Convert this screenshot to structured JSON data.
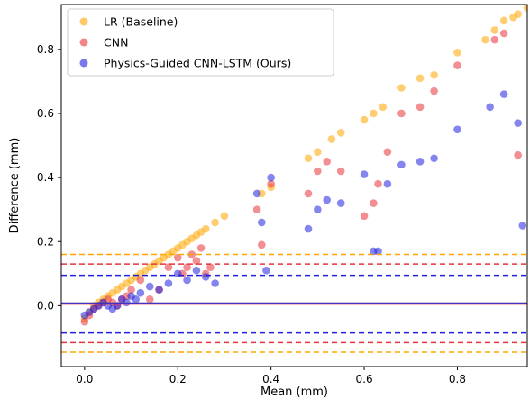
{
  "chart_data": {
    "type": "scatter",
    "title": "",
    "xlabel": "Mean (mm)",
    "ylabel": "Difference (mm)",
    "xlim": [
      -0.05,
      0.95
    ],
    "ylim": [
      -0.19,
      0.94
    ],
    "x_ticks": [
      0.0,
      0.2,
      0.4,
      0.6,
      0.8
    ],
    "x_tick_labels": [
      "0.0",
      "0.2",
      "0.4",
      "0.6",
      "0.8"
    ],
    "y_ticks": [
      0.0,
      0.2,
      0.4,
      0.6,
      0.8
    ],
    "y_tick_labels": [
      "0.0",
      "0.2",
      "0.4",
      "0.6",
      "0.8"
    ],
    "grid": false,
    "legend_position": "top-left",
    "series": [
      {
        "name": "LR (Baseline)",
        "color": "#FFA500",
        "bias": 0.008,
        "loa_upper": 0.16,
        "loa_lower": -0.145,
        "points": [
          [
            0.0,
            -0.04
          ],
          [
            0.01,
            -0.02
          ],
          [
            0.02,
            0.0
          ],
          [
            0.03,
            0.01
          ],
          [
            0.04,
            0.02
          ],
          [
            0.05,
            0.03
          ],
          [
            0.06,
            0.04
          ],
          [
            0.07,
            0.05
          ],
          [
            0.08,
            0.06
          ],
          [
            0.09,
            0.07
          ],
          [
            0.1,
            0.08
          ],
          [
            0.11,
            0.09
          ],
          [
            0.12,
            0.1
          ],
          [
            0.13,
            0.11
          ],
          [
            0.14,
            0.12
          ],
          [
            0.15,
            0.13
          ],
          [
            0.16,
            0.14
          ],
          [
            0.17,
            0.15
          ],
          [
            0.18,
            0.16
          ],
          [
            0.19,
            0.17
          ],
          [
            0.2,
            0.18
          ],
          [
            0.21,
            0.19
          ],
          [
            0.22,
            0.2
          ],
          [
            0.23,
            0.21
          ],
          [
            0.24,
            0.22
          ],
          [
            0.25,
            0.23
          ],
          [
            0.26,
            0.24
          ],
          [
            0.28,
            0.26
          ],
          [
            0.3,
            0.28
          ],
          [
            0.38,
            0.35
          ],
          [
            0.4,
            0.37
          ],
          [
            0.48,
            0.46
          ],
          [
            0.5,
            0.48
          ],
          [
            0.53,
            0.52
          ],
          [
            0.55,
            0.54
          ],
          [
            0.6,
            0.58
          ],
          [
            0.62,
            0.6
          ],
          [
            0.64,
            0.62
          ],
          [
            0.68,
            0.68
          ],
          [
            0.72,
            0.71
          ],
          [
            0.75,
            0.72
          ],
          [
            0.8,
            0.79
          ],
          [
            0.86,
            0.83
          ],
          [
            0.88,
            0.86
          ],
          [
            0.9,
            0.89
          ],
          [
            0.92,
            0.9
          ],
          [
            0.93,
            0.91
          ],
          [
            0.95,
            0.93
          ]
        ]
      },
      {
        "name": "CNN",
        "color": "#E8333A",
        "bias": 0.005,
        "loa_upper": 0.13,
        "loa_lower": -0.115,
        "points": [
          [
            0.0,
            -0.05
          ],
          [
            0.01,
            -0.03
          ],
          [
            0.02,
            -0.01
          ],
          [
            0.03,
            0.0
          ],
          [
            0.04,
            0.01
          ],
          [
            0.05,
            0.02
          ],
          [
            0.06,
            0.01
          ],
          [
            0.07,
            0.0
          ],
          [
            0.08,
            0.02
          ],
          [
            0.09,
            0.03
          ],
          [
            0.1,
            0.05
          ],
          [
            0.12,
            0.08
          ],
          [
            0.14,
            0.02
          ],
          [
            0.16,
            0.05
          ],
          [
            0.18,
            0.12
          ],
          [
            0.2,
            0.15
          ],
          [
            0.21,
            0.1
          ],
          [
            0.22,
            0.12
          ],
          [
            0.23,
            0.16
          ],
          [
            0.24,
            0.14
          ],
          [
            0.25,
            0.18
          ],
          [
            0.26,
            0.1
          ],
          [
            0.27,
            0.12
          ],
          [
            0.37,
            0.3
          ],
          [
            0.38,
            0.19
          ],
          [
            0.4,
            0.38
          ],
          [
            0.48,
            0.35
          ],
          [
            0.5,
            0.42
          ],
          [
            0.52,
            0.45
          ],
          [
            0.55,
            0.42
          ],
          [
            0.6,
            0.28
          ],
          [
            0.62,
            0.32
          ],
          [
            0.63,
            0.38
          ],
          [
            0.65,
            0.48
          ],
          [
            0.68,
            0.6
          ],
          [
            0.72,
            0.62
          ],
          [
            0.75,
            0.67
          ],
          [
            0.8,
            0.75
          ],
          [
            0.88,
            0.83
          ],
          [
            0.9,
            0.85
          ],
          [
            0.93,
            0.47
          ]
        ]
      },
      {
        "name": "Physics-Guided CNN-LSTM (Ours)",
        "color": "#2020E0",
        "bias": 0.008,
        "loa_upper": 0.095,
        "loa_lower": -0.085,
        "points": [
          [
            0.0,
            -0.03
          ],
          [
            0.01,
            -0.02
          ],
          [
            0.02,
            -0.01
          ],
          [
            0.03,
            0.0
          ],
          [
            0.04,
            0.01
          ],
          [
            0.05,
            0.0
          ],
          [
            0.06,
            -0.01
          ],
          [
            0.07,
            0.0
          ],
          [
            0.08,
            0.02
          ],
          [
            0.09,
            0.01
          ],
          [
            0.1,
            0.03
          ],
          [
            0.11,
            0.02
          ],
          [
            0.12,
            0.04
          ],
          [
            0.14,
            0.06
          ],
          [
            0.16,
            0.05
          ],
          [
            0.18,
            0.07
          ],
          [
            0.2,
            0.1
          ],
          [
            0.22,
            0.08
          ],
          [
            0.24,
            0.11
          ],
          [
            0.26,
            0.09
          ],
          [
            0.28,
            0.07
          ],
          [
            0.37,
            0.35
          ],
          [
            0.38,
            0.26
          ],
          [
            0.39,
            0.11
          ],
          [
            0.4,
            0.4
          ],
          [
            0.48,
            0.24
          ],
          [
            0.5,
            0.3
          ],
          [
            0.52,
            0.33
          ],
          [
            0.55,
            0.32
          ],
          [
            0.6,
            0.41
          ],
          [
            0.62,
            0.17
          ],
          [
            0.63,
            0.17
          ],
          [
            0.65,
            0.38
          ],
          [
            0.68,
            0.44
          ],
          [
            0.72,
            0.45
          ],
          [
            0.75,
            0.46
          ],
          [
            0.8,
            0.55
          ],
          [
            0.87,
            0.62
          ],
          [
            0.9,
            0.66
          ],
          [
            0.93,
            0.57
          ],
          [
            0.94,
            0.25
          ]
        ]
      }
    ]
  }
}
